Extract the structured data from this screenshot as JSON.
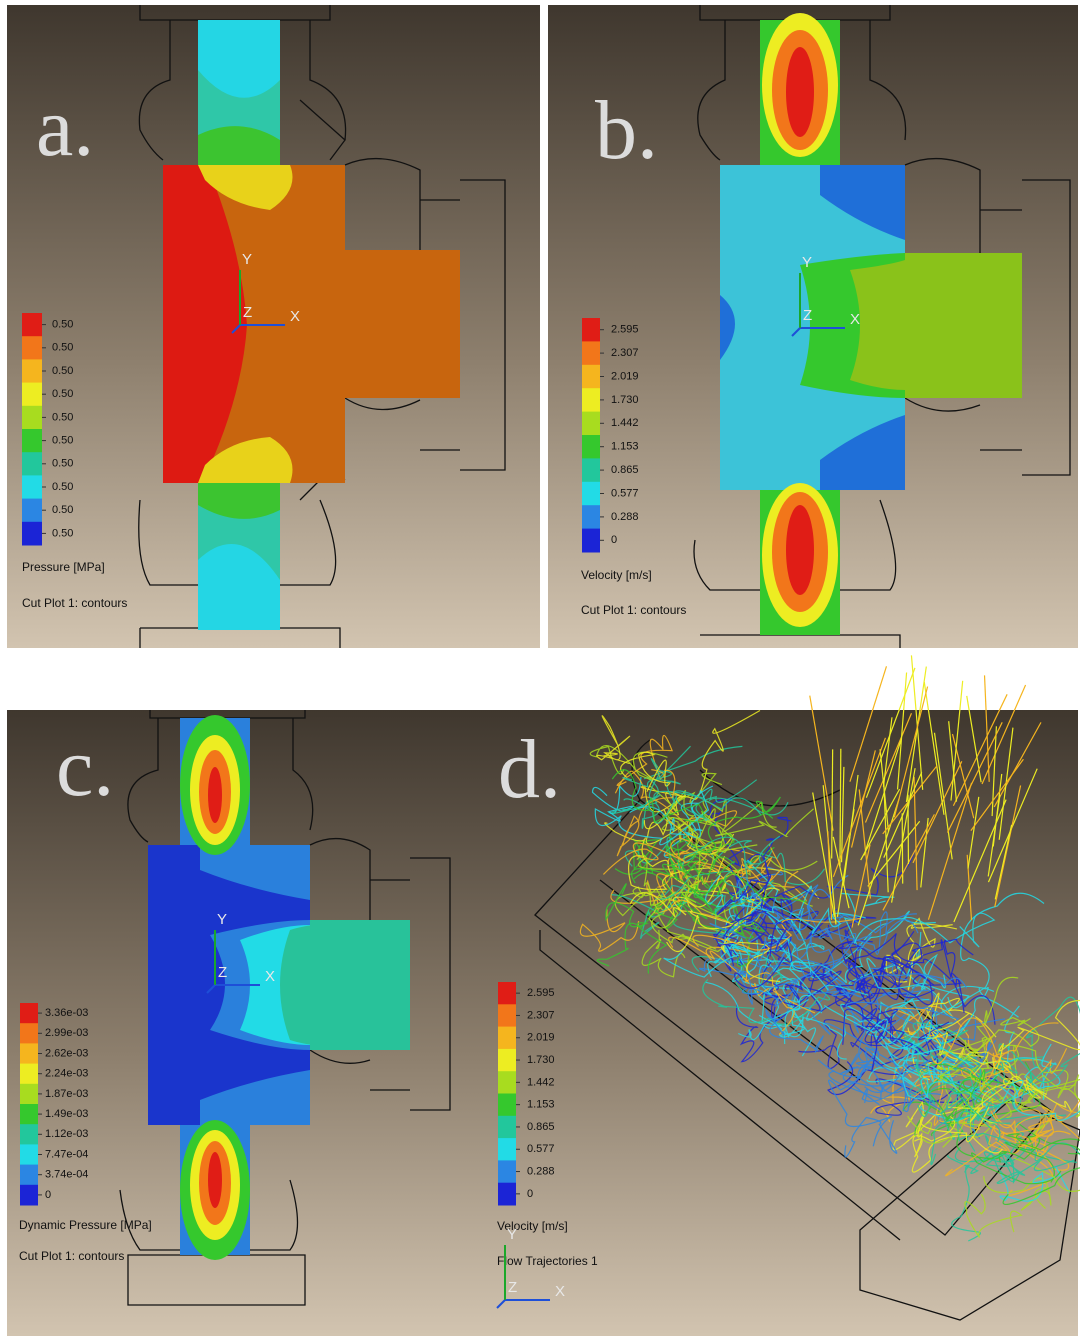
{
  "figure": {
    "colormap": [
      "#e01d16",
      "#f2761a",
      "#f5b51e",
      "#eded22",
      "#a8dc1f",
      "#35c82d",
      "#22c79c",
      "#22dbe6",
      "#2b86e3",
      "#1b24d6"
    ],
    "panels": [
      {
        "label": "a.",
        "legend": {
          "title": "Pressure [MPa]",
          "ticks": [
            "0.50",
            "0.50",
            "0.50",
            "0.50",
            "0.50",
            "0.50",
            "0.50",
            "0.50",
            "0.50",
            "0.50"
          ]
        },
        "caption": "Cut Plot 1: contours",
        "axes": [
          "X",
          "Y",
          "Z"
        ]
      },
      {
        "label": "b.",
        "legend": {
          "title": "Velocity [m/s]",
          "ticks": [
            "2.595",
            "2.307",
            "2.019",
            "1.730",
            "1.442",
            "1.153",
            "0.865",
            "0.577",
            "0.288",
            "0"
          ]
        },
        "caption": "Cut Plot 1: contours",
        "axes": [
          "X",
          "Y",
          "Z"
        ]
      },
      {
        "label": "c.",
        "legend": {
          "title": "Dynamic Pressure [MPa]",
          "ticks": [
            "3.36e-03",
            "2.99e-03",
            "2.62e-03",
            "2.24e-03",
            "1.87e-03",
            "1.49e-03",
            "1.12e-03",
            "7.47e-04",
            "3.74e-04",
            "0"
          ]
        },
        "caption": "Cut Plot 1: contours",
        "axes": [
          "X",
          "Y",
          "Z"
        ]
      },
      {
        "label": "d.",
        "legend": {
          "title": "Velocity [m/s]",
          "ticks": [
            "2.595",
            "2.307",
            "2.019",
            "1.730",
            "1.442",
            "1.153",
            "0.865",
            "0.577",
            "0.288",
            "0"
          ]
        },
        "caption": "Flow Trajectories 1",
        "axes": [
          "X",
          "Y",
          "Z"
        ]
      }
    ]
  }
}
